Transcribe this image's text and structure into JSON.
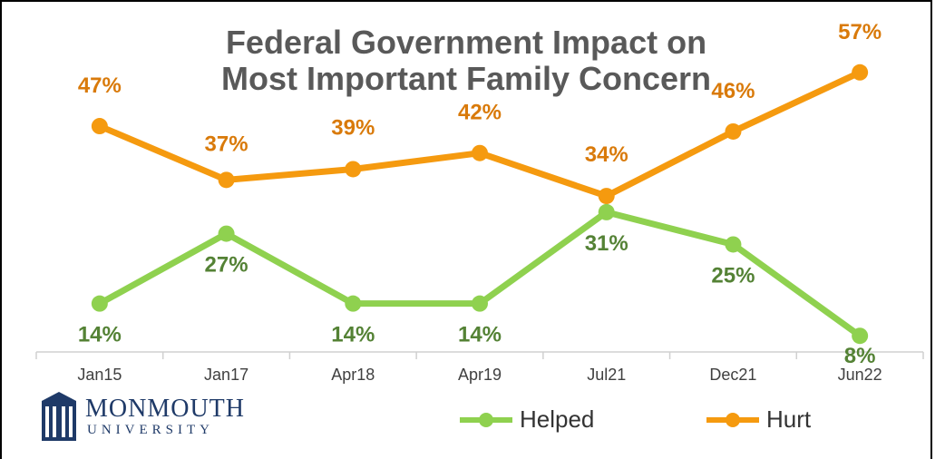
{
  "chart_data": {
    "type": "line",
    "title_line1": "Federal Government Impact on",
    "title_line2": "Most Important Family Concern",
    "categories": [
      "Jan15",
      "Jan17",
      "Apr18",
      "Apr19",
      "Jul21",
      "Dec21",
      "Jun22"
    ],
    "series": [
      {
        "name": "Hurt",
        "values": [
          47,
          37,
          39,
          42,
          34,
          46,
          57
        ],
        "labels": [
          "47%",
          "37%",
          "39%",
          "42%",
          "34%",
          "46%",
          "57%"
        ],
        "color": "#f59a0f",
        "label_color": "#d97a0a"
      },
      {
        "name": "Helped",
        "values": [
          14,
          27,
          14,
          14,
          31,
          25,
          8
        ],
        "labels": [
          "14%",
          "27%",
          "14%",
          "14%",
          "31%",
          "25%",
          "8%"
        ],
        "color": "#8fd14f",
        "label_color": "#548235"
      }
    ],
    "ylim": [
      5,
      60
    ],
    "grid": false,
    "legend_position": "bottom"
  },
  "logo": {
    "name": "MONMOUTH",
    "subname": "UNIVERSITY",
    "icon": "monmouth-hall-icon"
  }
}
